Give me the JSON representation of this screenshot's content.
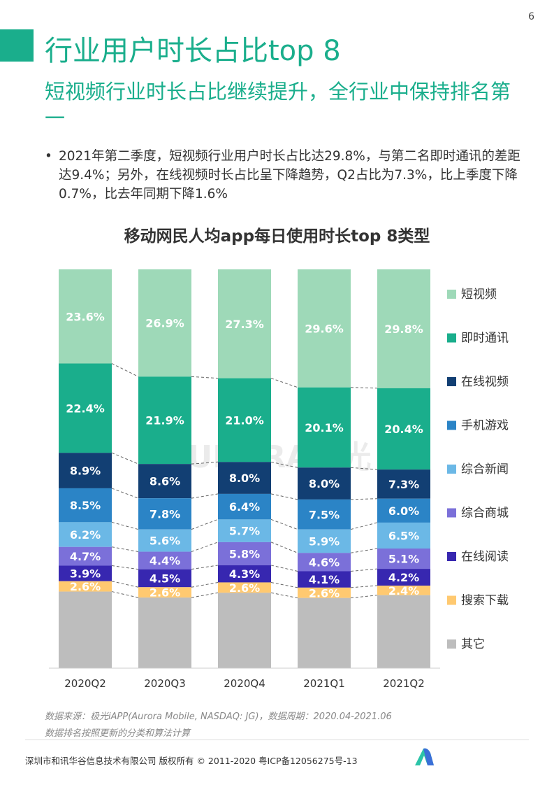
{
  "page_number": "6",
  "title": "行业用户时长占比top 8",
  "subtitle": "短视频行业时长占比继续提升，全行业中保持排名第一",
  "bullet": "2021年第二季度，短视频行业用户时长占比达29.8%，与第二名即时通讯的差距达9.4%；另外，在线视频时长占比呈下降趋势，Q2占比为7.3%，比上季度下降0.7%，比去年同期下降1.6%",
  "chart_data": {
    "type": "bar",
    "stacked": true,
    "title": "移动网民人均app每日使用时长top 8类型",
    "categories": [
      "2020Q2",
      "2020Q3",
      "2020Q4",
      "2021Q1",
      "2021Q2"
    ],
    "ylim": [
      0,
      100
    ],
    "legend_position": "right",
    "series": [
      {
        "name": "短视频",
        "color": "#9ED9B8",
        "values": [
          23.6,
          26.9,
          27.3,
          29.6,
          29.8
        ]
      },
      {
        "name": "即时通讯",
        "color": "#1AAE8C",
        "values": [
          22.4,
          21.9,
          21.0,
          20.1,
          20.4
        ]
      },
      {
        "name": "在线视频",
        "color": "#123F73",
        "values": [
          8.9,
          8.6,
          8.0,
          8.0,
          7.3
        ]
      },
      {
        "name": "手机游戏",
        "color": "#2B84C6",
        "values": [
          8.5,
          7.8,
          6.4,
          7.5,
          6.0
        ]
      },
      {
        "name": "综合新闻",
        "color": "#6BB8E6",
        "values": [
          6.2,
          5.6,
          5.7,
          5.9,
          6.5
        ]
      },
      {
        "name": "综合商城",
        "color": "#7B70D9",
        "values": [
          4.7,
          4.4,
          5.8,
          4.6,
          5.1
        ]
      },
      {
        "name": "在线阅读",
        "color": "#3727B0",
        "values": [
          3.9,
          4.5,
          4.3,
          4.1,
          4.2
        ]
      },
      {
        "name": "搜索下载",
        "color": "#FFC970",
        "values": [
          2.6,
          2.6,
          2.6,
          2.6,
          2.4
        ]
      },
      {
        "name": "其它",
        "color": "#BDBDBD",
        "values": [
          19.2,
          17.7,
          18.9,
          17.6,
          18.3
        ],
        "labels_shown": false
      }
    ]
  },
  "watermark": "URORA极光",
  "source_line1": "数据来源：极光iAPP(Aurora Mobile, NASDAQ: JG)，数据周期：2020.04-2021.06",
  "source_line2": "数据排名按照更新的分类和算法计算",
  "footer": "深圳市和讯华谷信息技术有限公司 版权所有 © 2011-2020 粤ICP备12056275号-13",
  "logo_text": "URORA极光"
}
